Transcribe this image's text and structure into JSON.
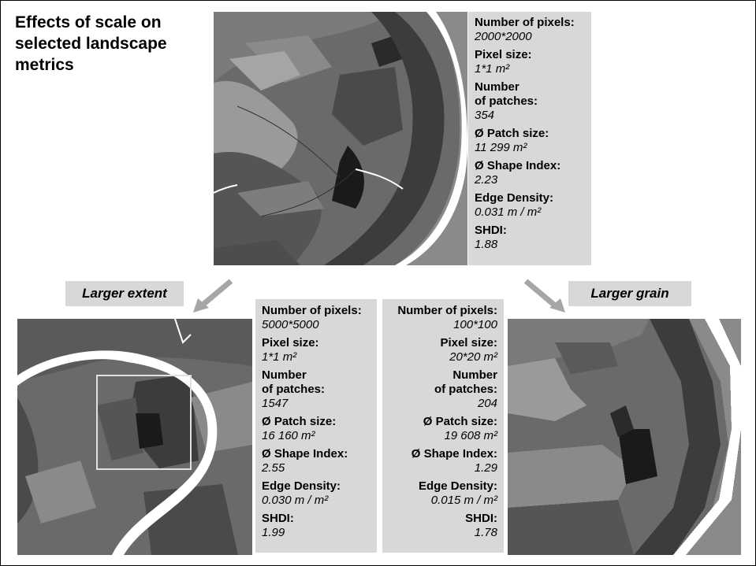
{
  "title": "Effects of scale on selected landscape metrics",
  "labels": {
    "larger_extent": "Larger extent",
    "larger_grain": "Larger grain"
  },
  "panels": {
    "top": [
      {
        "label": "Number of pixels:",
        "value": "2000*2000"
      },
      {
        "label": "Pixel size:",
        "value": "1*1 m²"
      },
      {
        "label": "Number\nof patches:",
        "value": "354"
      },
      {
        "label": "Ø Patch size:",
        "value": "11 299 m²"
      },
      {
        "label": "Ø Shape Index:",
        "value": "2.23"
      },
      {
        "label": "Edge Density:",
        "value": "0.031 m / m²"
      },
      {
        "label": "SHDI:",
        "value": "1.88"
      }
    ],
    "extent": [
      {
        "label": "Number of pixels:",
        "value": "5000*5000"
      },
      {
        "label": "Pixel size:",
        "value": "1*1 m²"
      },
      {
        "label": "Number\nof patches:",
        "value": "1547"
      },
      {
        "label": "Ø Patch size:",
        "value": "16 160 m²"
      },
      {
        "label": "Ø Shape Index:",
        "value": "2.55"
      },
      {
        "label": "Edge Density:",
        "value": "0.030 m / m²"
      },
      {
        "label": "SHDI:",
        "value": "1.99"
      }
    ],
    "grain": [
      {
        "label": "Number of pixels:",
        "value": "100*100"
      },
      {
        "label": "Pixel size:",
        "value": "20*20 m²"
      },
      {
        "label": "Number\nof patches:",
        "value": "204"
      },
      {
        "label": "Ø Patch size:",
        "value": "19 608 m²"
      },
      {
        "label": "Ø Shape Index:",
        "value": "1.29"
      },
      {
        "label": "Edge Density:",
        "value": "0.015 m / m²"
      },
      {
        "label": "SHDI:",
        "value": "1.78"
      }
    ]
  },
  "colors": {
    "panel_bg": "#d8d8d8",
    "arrow": "#a6a6a6",
    "map_dark": "#3c3c3c",
    "map_mid": "#6a6a6a",
    "map_light": "#9a9a9a",
    "river": "#ffffff"
  }
}
